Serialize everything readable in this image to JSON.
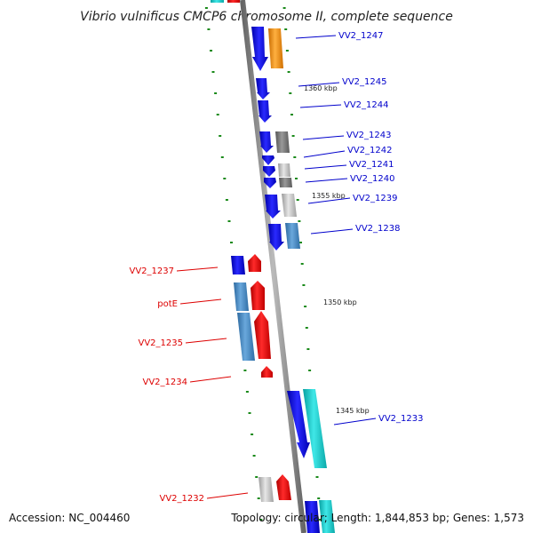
{
  "title": "Vibrio vulnificus CMCP6 chromosome II, complete sequence",
  "accession_text": "Accession: NC_004460",
  "summary_text": "Topology: circular; Length: 1,844,853 bp; Genes: 1,573",
  "colors": {
    "forward_label": "#0000cc",
    "reverse_label": "#dd0000",
    "blue": "#1010e0",
    "red": "#ee1010",
    "steel": "#4a86c0",
    "cyan": "#18c8c8",
    "gray": "#777777",
    "silver": "#bbbbbb",
    "orange": "#f08c10",
    "backbone": "#888888",
    "tick": "#1a8a1a"
  },
  "ticks": [
    {
      "label": "1360 kbp"
    },
    {
      "label": "1355 kbp"
    },
    {
      "label": "1350 kbp"
    },
    {
      "label": "1345 kbp"
    }
  ],
  "genes": [
    {
      "name": "VV2_1247",
      "strand": "forward"
    },
    {
      "name": "VV2_1245",
      "strand": "forward"
    },
    {
      "name": "VV2_1244",
      "strand": "forward"
    },
    {
      "name": "VV2_1243",
      "strand": "forward"
    },
    {
      "name": "VV2_1242",
      "strand": "forward"
    },
    {
      "name": "VV2_1241",
      "strand": "forward"
    },
    {
      "name": "VV2_1240",
      "strand": "forward"
    },
    {
      "name": "VV2_1239",
      "strand": "forward"
    },
    {
      "name": "VV2_1238",
      "strand": "forward"
    },
    {
      "name": "VV2_1237",
      "strand": "reverse"
    },
    {
      "name": "potE",
      "strand": "reverse"
    },
    {
      "name": "VV2_1235",
      "strand": "reverse"
    },
    {
      "name": "VV2_1234",
      "strand": "reverse"
    },
    {
      "name": "VV2_1233",
      "strand": "forward"
    },
    {
      "name": "VV2_1232",
      "strand": "reverse"
    }
  ]
}
